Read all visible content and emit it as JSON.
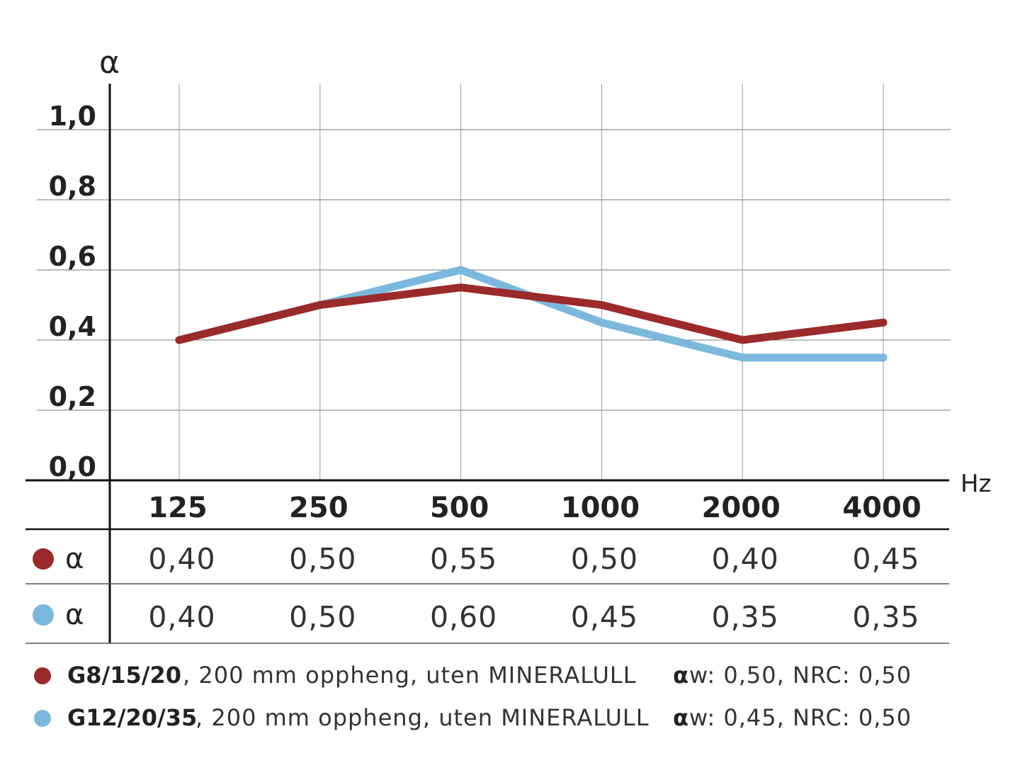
{
  "chart_data": {
    "type": "line",
    "ylabel": "α",
    "xlabel": "Hz",
    "ylim": [
      0,
      1.0
    ],
    "y_ticks": [
      "0,0",
      "0,2",
      "0,4",
      "0,6",
      "0,8",
      "1,0"
    ],
    "y_tick_values": [
      0,
      0.2,
      0.4,
      0.6,
      0.8,
      1.0
    ],
    "categories": [
      "125",
      "250",
      "500",
      "1000",
      "2000",
      "4000"
    ],
    "series": [
      {
        "symbol": "α",
        "color": "#9b2a2a",
        "values": [
          0.4,
          0.5,
          0.55,
          0.5,
          0.4,
          0.45
        ],
        "table_values": [
          "0,40",
          "0,50",
          "0,55",
          "0,50",
          "0,40",
          "0,45"
        ]
      },
      {
        "symbol": "α",
        "color": "#7ab8de",
        "values": [
          0.4,
          0.5,
          0.6,
          0.45,
          0.35,
          0.35
        ],
        "table_values": [
          "0,40",
          "0,50",
          "0,60",
          "0,45",
          "0,35",
          "0,35"
        ]
      }
    ],
    "grid": true
  },
  "legend": [
    {
      "name": "G8/15/20",
      "description": ", 200 mm oppheng, uten MINERALULL",
      "aw_symbol": "α",
      "aw_text": "w: 0,50, NRC: 0,50",
      "color": "#9b2a2a"
    },
    {
      "name": "G12/20/35",
      "description": ", 200 mm oppheng, uten MINERALULL",
      "aw_symbol": "α",
      "aw_text": "w: 0,45, NRC: 0,50",
      "color": "#7ab8de"
    }
  ]
}
